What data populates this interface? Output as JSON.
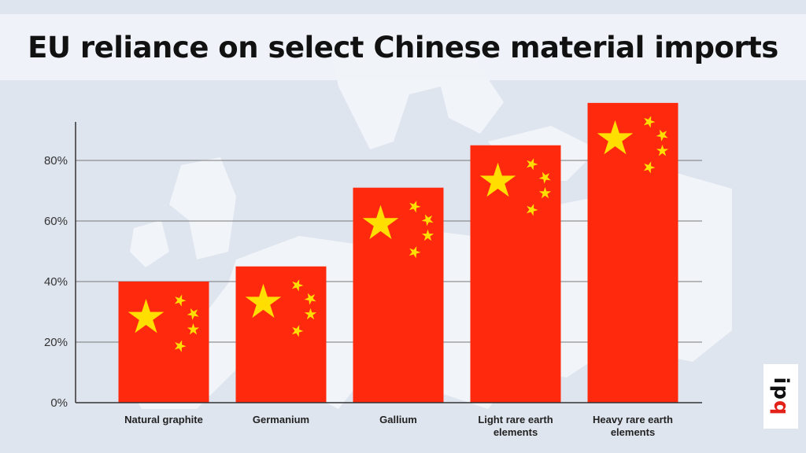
{
  "title": "EU reliance on select Chinese material imports",
  "logo": {
    "main": "ip",
    "accent": "q"
  },
  "colors": {
    "bar": "#ff2a0e",
    "star": "#ffde00",
    "grid": "#777777",
    "background": "#dfe5ef"
  },
  "chart_data": {
    "type": "bar",
    "title": "EU reliance on select Chinese material imports",
    "xlabel": "",
    "ylabel": "",
    "categories": [
      "Natural graphite",
      "Germanium",
      "Gallium",
      "Light rare earth elements",
      "Heavy rare earth elements"
    ],
    "category_lines": [
      [
        "Natural graphite"
      ],
      [
        "Germanium"
      ],
      [
        "Gallium"
      ],
      [
        "Light rare earth",
        "elements"
      ],
      [
        "Heavy rare earth",
        "elements"
      ]
    ],
    "values": [
      40,
      45,
      71,
      85,
      99
    ],
    "ylim": [
      0,
      100
    ],
    "yticks": [
      0,
      20,
      40,
      60,
      80
    ],
    "ytick_labels": [
      "0%",
      "20%",
      "40%",
      "60%",
      "80%"
    ],
    "grid": true,
    "bar_style": "Chinese flag"
  }
}
